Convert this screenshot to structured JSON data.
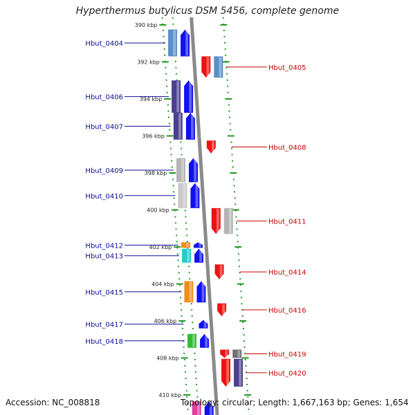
{
  "title": "Hyperthermus butylicus DSM 5456, complete genome",
  "accession": "Accession: NC_008818",
  "footer": "Topology: circular; Length: 1,667,163 bp; Genes: 1,654",
  "colors": {
    "forward_strand": "#1010f0",
    "reverse_strand": "#ee1111",
    "left_label": "#0b0b9a",
    "right_label": "#cc0000",
    "backbone": "#8a8a8a",
    "tick": "#229922"
  },
  "ticks": [
    {
      "label": "390 kbp",
      "kbp": 390
    },
    {
      "label": "392 kbp",
      "kbp": 392
    },
    {
      "label": "394 kbp",
      "kbp": 394
    },
    {
      "label": "396 kbp",
      "kbp": 396
    },
    {
      "label": "398 kbp",
      "kbp": 398
    },
    {
      "label": "400 kbp",
      "kbp": 400
    },
    {
      "label": "402 kbp",
      "kbp": 402
    },
    {
      "label": "404 kbp",
      "kbp": 404
    },
    {
      "label": "406 kbp",
      "kbp": 406
    },
    {
      "label": "408 kbp",
      "kbp": 408
    },
    {
      "label": "410 kbp",
      "kbp": 410
    }
  ],
  "genes": [
    {
      "name": "Hbut_0404",
      "strand": "+",
      "start_kbp": 390.25,
      "end_kbp": 391.7,
      "cog_color": "#5a8fc8"
    },
    {
      "name": "Hbut_0405",
      "strand": "-",
      "start_kbp": 391.7,
      "end_kbp": 392.85,
      "cog_color": "#5a8fc8"
    },
    {
      "name": "Hbut_0406",
      "strand": "+",
      "start_kbp": 393.0,
      "end_kbp": 394.75,
      "cog_color": "#4b3f8f"
    },
    {
      "name": "Hbut_0407",
      "strand": "+",
      "start_kbp": 394.75,
      "end_kbp": 396.2,
      "cog_color": "#4b3f8f"
    },
    {
      "name": "Hbut_0408",
      "strand": "-",
      "start_kbp": 396.25,
      "end_kbp": 396.95,
      "cog_color": ""
    },
    {
      "name": "Hbut_0409",
      "strand": "+",
      "start_kbp": 397.2,
      "end_kbp": 398.5,
      "cog_color": "#b4b4b4"
    },
    {
      "name": "Hbut_0410",
      "strand": "+",
      "start_kbp": 398.55,
      "end_kbp": 399.9,
      "cog_color": "#c8c8c8"
    },
    {
      "name": "Hbut_0411",
      "strand": "-",
      "start_kbp": 399.9,
      "end_kbp": 401.3,
      "cog_color": "#b4b4b4"
    },
    {
      "name": "Hbut_0412",
      "strand": "+",
      "start_kbp": 401.75,
      "end_kbp": 402.05,
      "cog_color": "#f08c1e"
    },
    {
      "name": "Hbut_0413",
      "strand": "+",
      "start_kbp": 402.1,
      "end_kbp": 402.85,
      "cog_color": "#22cccc"
    },
    {
      "name": "Hbut_0414",
      "strand": "-",
      "start_kbp": 402.95,
      "end_kbp": 403.75,
      "cog_color": ""
    },
    {
      "name": "Hbut_0415",
      "strand": "+",
      "start_kbp": 403.85,
      "end_kbp": 405.0,
      "cog_color": "#f08c1e"
    },
    {
      "name": "Hbut_0416",
      "strand": "-",
      "start_kbp": 405.05,
      "end_kbp": 405.75,
      "cog_color": ""
    },
    {
      "name": "Hbut_0417",
      "strand": "+",
      "start_kbp": 405.95,
      "end_kbp": 406.4,
      "cog_color": ""
    },
    {
      "name": "Hbut_0418",
      "strand": "+",
      "start_kbp": 406.7,
      "end_kbp": 407.45,
      "cog_color": "#33bb33"
    },
    {
      "name": "Hbut_0419",
      "strand": "-",
      "start_kbp": 407.55,
      "end_kbp": 408.0,
      "cog_color": "#707070"
    },
    {
      "name": "Hbut_0420",
      "strand": "-",
      "start_kbp": 408.05,
      "end_kbp": 409.55,
      "cog_color": "#4b3f8f"
    },
    {
      "name": "",
      "strand": "+",
      "start_kbp": 410.35,
      "end_kbp": 411.5,
      "cog_color": "#e040a0"
    }
  ]
}
